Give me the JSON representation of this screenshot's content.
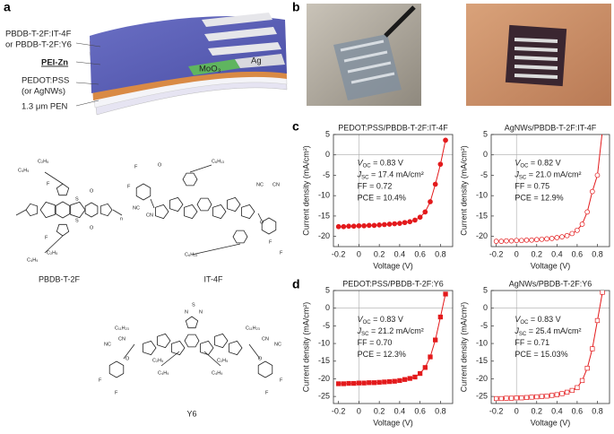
{
  "panels": [
    "a",
    "b",
    "c",
    "d"
  ],
  "device": {
    "active": "PBDB-T-2F:IT-4F",
    "active_alt": "or PBDB-T-2F:Y6",
    "etl": "PEI-Zn",
    "htl": "PEDOT:PSS",
    "htl_alt": "(or AgNWs)",
    "substrate": "1.3 μm PEN",
    "moo3": "MoO₃",
    "ag": "Ag"
  },
  "molecules": {
    "names": [
      "PBDB-T-2F",
      "IT-4F",
      "Y6"
    ],
    "pbdb_labels": [
      "C₄H₉",
      "C₂H₅",
      "C₄H₉",
      "C₂H₅",
      "F",
      "F",
      "S",
      "S",
      "O",
      "O",
      "n"
    ],
    "it4f_labels": [
      "F",
      "F",
      "O",
      "NC",
      "CN",
      "C₆H₁₃",
      "C₆H₁₃",
      "NC",
      "CN",
      "O",
      "F",
      "F"
    ],
    "y6_labels": [
      "N",
      "S",
      "N",
      "C₁₁H₂₃",
      "C₁₁H₂₃",
      "NC",
      "CN",
      "O",
      "O",
      "CN",
      "NC",
      "C₂H₅",
      "C₄H₉",
      "C₄H₉",
      "C₂H₅",
      "F",
      "F",
      "F",
      "F"
    ]
  },
  "chart_data": [
    {
      "type": "line",
      "title": "PEDOT:PSS/PBDB-T-2F:IT-4F",
      "xlabel": "Voltage (V)",
      "ylabel": "Current density (mA/cm²)",
      "x": [
        -0.2,
        -0.15,
        -0.1,
        -0.05,
        0,
        0.05,
        0.1,
        0.15,
        0.2,
        0.25,
        0.3,
        0.35,
        0.4,
        0.45,
        0.5,
        0.55,
        0.6,
        0.65,
        0.7,
        0.75,
        0.8,
        0.85
      ],
      "series": [
        {
          "color": "#e31a1c",
          "marker": "circle",
          "filled": true,
          "values": [
            -17.6,
            -17.6,
            -17.5,
            -17.5,
            -17.4,
            -17.4,
            -17.3,
            -17.3,
            -17.2,
            -17.1,
            -17.0,
            -16.9,
            -16.8,
            -16.6,
            -16.4,
            -16.0,
            -15.3,
            -14.0,
            -11.5,
            -7.2,
            -2.3,
            3.6
          ]
        }
      ],
      "xlim": [
        -0.25,
        0.92
      ],
      "ylim": [
        -22.5,
        5
      ],
      "xticks": [
        -0.2,
        0,
        0.2,
        0.4,
        0.6,
        0.8
      ],
      "yticks": [
        5,
        0,
        -5,
        -10,
        -15,
        -20
      ],
      "zero_lines": true,
      "annotations": [
        {
          "main": "V",
          "sub": "OC",
          "rest": " = 0.83 V"
        },
        {
          "main": "J",
          "sub": "SC",
          "rest": " = 17.4 mA/cm²"
        },
        {
          "main": "FF = 0.72"
        },
        {
          "main": "PCE = 10.4%"
        }
      ]
    },
    {
      "type": "line",
      "title": "AgNWs/PBDB-T-2F:IT-4F",
      "xlabel": "Voltage (V)",
      "ylabel": "Current density (mA/cm²)",
      "x": [
        -0.2,
        -0.15,
        -0.1,
        -0.05,
        0,
        0.05,
        0.1,
        0.15,
        0.2,
        0.25,
        0.3,
        0.35,
        0.4,
        0.45,
        0.5,
        0.55,
        0.6,
        0.65,
        0.7,
        0.75,
        0.8,
        0.85
      ],
      "series": [
        {
          "color": "#e31a1c",
          "marker": "circle",
          "filled": false,
          "values": [
            -21.2,
            -21.2,
            -21.1,
            -21.1,
            -21.0,
            -21.0,
            -20.9,
            -20.9,
            -20.8,
            -20.7,
            -20.6,
            -20.5,
            -20.3,
            -20.1,
            -19.8,
            -19.3,
            -18.5,
            -17.0,
            -14.0,
            -9.0,
            -5.0,
            6.0
          ]
        }
      ],
      "xlim": [
        -0.25,
        0.92
      ],
      "ylim": [
        -22.5,
        5
      ],
      "xticks": [
        -0.2,
        0,
        0.2,
        0.4,
        0.6,
        0.8
      ],
      "yticks": [
        5,
        0,
        -5,
        -10,
        -15,
        -20
      ],
      "zero_lines": true,
      "annotations": [
        {
          "main": "V",
          "sub": "OC",
          "rest": " = 0.82 V"
        },
        {
          "main": "J",
          "sub": "SC",
          "rest": " = 21.0 mA/cm²"
        },
        {
          "main": "FF = 0.75"
        },
        {
          "main": "PCE = 12.9%"
        }
      ]
    },
    {
      "type": "line",
      "title": "PEDOT:PSS/PBDB-T-2F:Y6",
      "xlabel": "Voltage (V)",
      "ylabel": "Current density (mA/cm²)",
      "x": [
        -0.2,
        -0.15,
        -0.1,
        -0.05,
        0,
        0.05,
        0.1,
        0.15,
        0.2,
        0.25,
        0.3,
        0.35,
        0.4,
        0.45,
        0.5,
        0.55,
        0.6,
        0.65,
        0.7,
        0.75,
        0.8,
        0.85
      ],
      "series": [
        {
          "color": "#e31a1c",
          "marker": "square",
          "filled": true,
          "values": [
            -21.4,
            -21.4,
            -21.3,
            -21.3,
            -21.2,
            -21.2,
            -21.1,
            -21.1,
            -21.0,
            -20.9,
            -20.8,
            -20.7,
            -20.5,
            -20.2,
            -19.9,
            -19.5,
            -18.5,
            -16.8,
            -13.8,
            -9.0,
            -2.5,
            4.0
          ]
        }
      ],
      "xlim": [
        -0.25,
        0.92
      ],
      "ylim": [
        -27,
        5
      ],
      "xticks": [
        -0.2,
        0,
        0.2,
        0.4,
        0.6,
        0.8
      ],
      "yticks": [
        5,
        0,
        -5,
        -10,
        -15,
        -20,
        -25
      ],
      "zero_lines": true,
      "annotations": [
        {
          "main": "V",
          "sub": "OC",
          "rest": " = 0.83 V"
        },
        {
          "main": "J",
          "sub": "SC",
          "rest": " = 21.2 mA/cm²"
        },
        {
          "main": "FF = 0.70"
        },
        {
          "main": "PCE = 12.3%"
        }
      ]
    },
    {
      "type": "line",
      "title": "AgNWs/PBDB-T-2F:Y6",
      "xlabel": "Voltage (V)",
      "ylabel": "Current density (mA/cm²)",
      "x": [
        -0.2,
        -0.15,
        -0.1,
        -0.05,
        0,
        0.05,
        0.1,
        0.15,
        0.2,
        0.25,
        0.3,
        0.35,
        0.4,
        0.45,
        0.5,
        0.55,
        0.6,
        0.65,
        0.7,
        0.75,
        0.8,
        0.85
      ],
      "series": [
        {
          "color": "#e31a1c",
          "marker": "square",
          "filled": false,
          "values": [
            -25.6,
            -25.6,
            -25.5,
            -25.5,
            -25.4,
            -25.4,
            -25.3,
            -25.2,
            -25.1,
            -25.0,
            -24.9,
            -24.7,
            -24.5,
            -24.2,
            -23.8,
            -23.3,
            -22.5,
            -20.5,
            -17.0,
            -11.5,
            -3.5,
            4.5
          ]
        }
      ],
      "xlim": [
        -0.25,
        0.92
      ],
      "ylim": [
        -27,
        5
      ],
      "xticks": [
        -0.2,
        0,
        0.2,
        0.4,
        0.6,
        0.8
      ],
      "yticks": [
        5,
        0,
        -5,
        -10,
        -15,
        -20,
        -25
      ],
      "zero_lines": true,
      "annotations": [
        {
          "main": "V",
          "sub": "OC",
          "rest": " = 0.83 V"
        },
        {
          "main": "J",
          "sub": "SC",
          "rest": " = 25.4 mA/cm²"
        },
        {
          "main": "FF = 0.71"
        },
        {
          "main": "PCE = 15.03%"
        }
      ]
    }
  ]
}
